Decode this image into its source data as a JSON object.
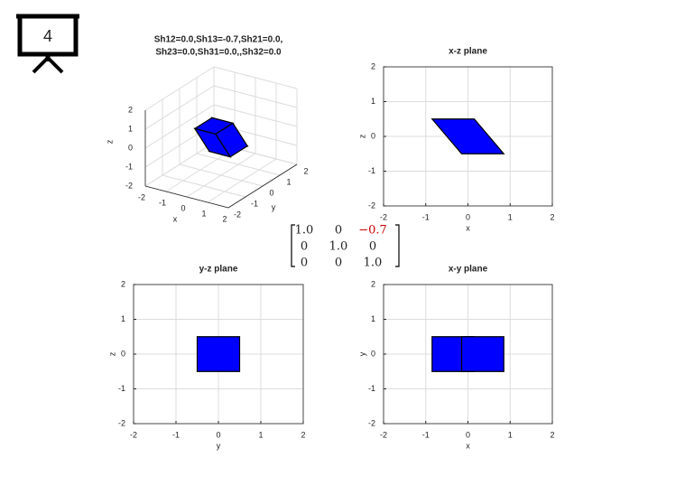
{
  "slide_number": "4",
  "chart_data": [
    {
      "type": "polygon3d",
      "title": [
        "Sh12=0.0,Sh13=-0.7,Sh21=0.0,",
        "Sh23=0.0,Sh31=0.0,,Sh32=0.0"
      ],
      "xlabel": "x",
      "ylabel": "y",
      "zlabel": "z",
      "xlim": [
        -2,
        2
      ],
      "ylim": [
        -2,
        2
      ],
      "zlim": [
        -2,
        2
      ],
      "xticks": [
        -2,
        -1,
        0,
        1,
        2
      ],
      "yticks": [
        -2,
        -1,
        0,
        1,
        2
      ],
      "zticks": [
        -2,
        -1,
        0,
        1,
        2
      ],
      "grid": true,
      "color": "#0000ff",
      "faces": [
        {
          "x": [
            -0.15,
            0.85,
            0.85,
            -0.15
          ],
          "y": [
            -0.5,
            -0.5,
            0.5,
            0.5
          ],
          "z": [
            -0.5,
            -0.5,
            -0.5,
            -0.5
          ]
        },
        {
          "x": [
            -0.85,
            0.15,
            0.15,
            -0.85
          ],
          "y": [
            -0.5,
            -0.5,
            0.5,
            0.5
          ],
          "z": [
            0.5,
            0.5,
            0.5,
            0.5
          ]
        },
        {
          "x": [
            -0.15,
            0.85,
            0.15,
            -0.85
          ],
          "y": [
            -0.5,
            -0.5,
            -0.5,
            -0.5
          ],
          "z": [
            -0.5,
            -0.5,
            0.5,
            0.5
          ]
        },
        {
          "x": [
            -0.15,
            0.85,
            0.15,
            -0.85
          ],
          "y": [
            0.5,
            0.5,
            0.5,
            0.5
          ],
          "z": [
            -0.5,
            -0.5,
            0.5,
            0.5
          ]
        },
        {
          "x": [
            -0.15,
            -0.15,
            -0.85,
            -0.85
          ],
          "y": [
            -0.5,
            0.5,
            0.5,
            -0.5
          ],
          "z": [
            -0.5,
            -0.5,
            0.5,
            0.5
          ]
        },
        {
          "x": [
            0.85,
            0.85,
            0.15,
            0.15
          ],
          "y": [
            -0.5,
            0.5,
            0.5,
            -0.5
          ],
          "z": [
            -0.5,
            -0.5,
            0.5,
            0.5
          ]
        }
      ]
    },
    {
      "type": "polygon",
      "title": "x-z plane",
      "xlabel": "x",
      "ylabel": "z",
      "xlim": [
        -2,
        2
      ],
      "ylim": [
        -2,
        2
      ],
      "xticks": [
        -2,
        -1,
        0,
        1,
        2
      ],
      "yticks": [
        -2,
        -1,
        0,
        1,
        2
      ],
      "grid": true,
      "color": "#0000ff",
      "polygons": [
        {
          "x": [
            -0.15,
            0.85,
            0.15,
            -0.85
          ],
          "y": [
            -0.5,
            -0.5,
            0.5,
            0.5
          ]
        }
      ]
    },
    {
      "type": "polygon",
      "title": "y-z plane",
      "xlabel": "y",
      "ylabel": "z",
      "xlim": [
        -2,
        2
      ],
      "ylim": [
        -2,
        2
      ],
      "xticks": [
        -2,
        -1,
        0,
        1,
        2
      ],
      "yticks": [
        -2,
        -1,
        0,
        1,
        2
      ],
      "grid": true,
      "color": "#0000ff",
      "polygons": [
        {
          "x": [
            -0.5,
            0.5,
            0.5,
            -0.5
          ],
          "y": [
            -0.5,
            -0.5,
            0.5,
            0.5
          ]
        }
      ]
    },
    {
      "type": "polygon",
      "title": "x-y plane",
      "xlabel": "x",
      "ylabel": "y",
      "xlim": [
        -2,
        2
      ],
      "ylim": [
        -2,
        2
      ],
      "xticks": [
        -2,
        -1,
        0,
        1,
        2
      ],
      "yticks": [
        -2,
        -1,
        0,
        1,
        2
      ],
      "grid": true,
      "color": "#0000ff",
      "polygons": [
        {
          "x": [
            -0.85,
            0.15,
            0.15,
            -0.85
          ],
          "y": [
            -0.5,
            -0.5,
            0.5,
            0.5
          ]
        },
        {
          "x": [
            -0.15,
            0.85,
            0.85,
            -0.15
          ],
          "y": [
            -0.5,
            -0.5,
            0.5,
            0.5
          ]
        }
      ]
    }
  ],
  "matrix": {
    "rows": [
      [
        "1.0",
        "0",
        "−0.7"
      ],
      [
        "0",
        "1.0",
        "0"
      ],
      [
        "0",
        "0",
        "1.0"
      ]
    ],
    "highlight_cell": [
      0,
      2
    ],
    "highlight_color": "#cc0000"
  }
}
